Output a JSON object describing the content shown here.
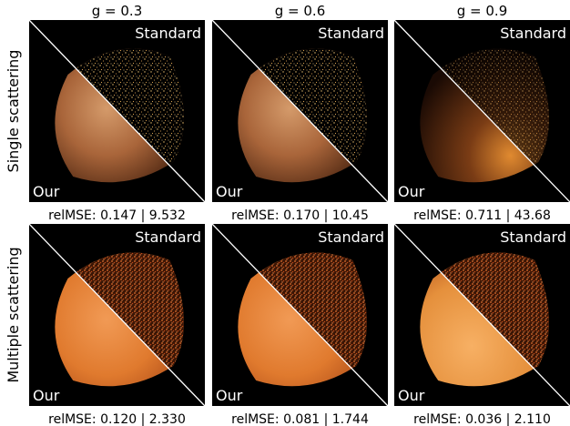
{
  "columns": [
    "g = 0.3",
    "g = 0.6",
    "g = 0.9"
  ],
  "rows": [
    {
      "label": "Single scattering",
      "panels": [
        {
          "top_label": "Standard",
          "bottom_label": "Our",
          "caption": "relMSE: 0.147 | 9.532"
        },
        {
          "top_label": "Standard",
          "bottom_label": "Our",
          "caption": "relMSE: 0.170 | 10.45"
        },
        {
          "top_label": "Standard",
          "bottom_label": "Our",
          "caption": "relMSE: 0.711 | 43.68"
        }
      ]
    },
    {
      "label": "Multiple scattering",
      "panels": [
        {
          "top_label": "Standard",
          "bottom_label": "Our",
          "caption": "relMSE: 0.120 | 2.330"
        },
        {
          "top_label": "Standard",
          "bottom_label": "Our",
          "caption": "relMSE: 0.081 | 1.744"
        },
        {
          "top_label": "Standard",
          "bottom_label": "Our",
          "caption": "relMSE: 0.036 | 2.110"
        }
      ]
    }
  ]
}
